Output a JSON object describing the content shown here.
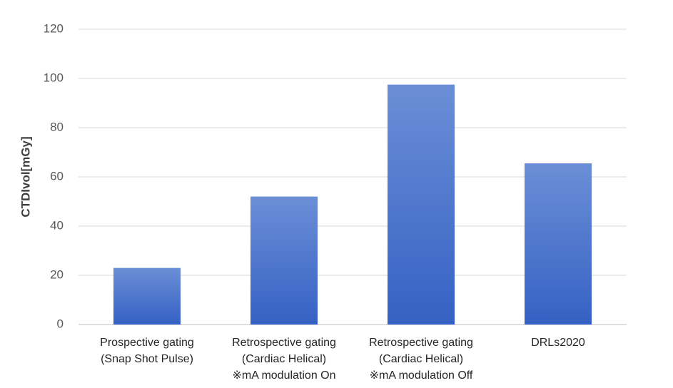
{
  "chart_data": {
    "type": "bar",
    "title": "",
    "xlabel": "",
    "ylabel": "CTDIvol[mGy]",
    "ylim": [
      0,
      120
    ],
    "yticks": [
      0,
      20,
      40,
      60,
      80,
      100,
      120
    ],
    "grid": true,
    "legend": "none",
    "categories": [
      [
        "Prospective gating",
        "(Snap Shot Pulse)"
      ],
      [
        "Retrospective gating",
        "(Cardiac Helical)",
        "※mA modulation On"
      ],
      [
        "Retrospective gating",
        "(Cardiac Helical)",
        "※mA modulation Off"
      ],
      [
        "DRLs2020"
      ]
    ],
    "values": [
      23,
      52,
      97.5,
      65.5
    ],
    "colors": {
      "bar_top": "#6b8ed6",
      "bar_bottom": "#3561c4",
      "grid": "#d9d9d9",
      "axis": "#bfbfbf"
    }
  }
}
